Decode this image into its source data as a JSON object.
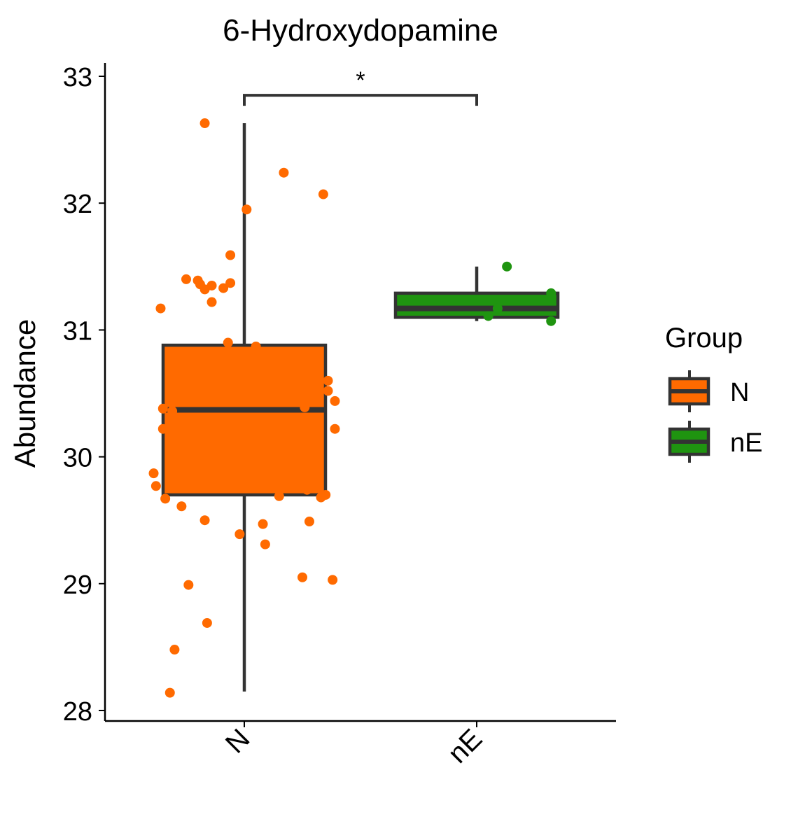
{
  "chart_data": {
    "type": "boxplot",
    "title": "6-Hydroxydopamine",
    "xlabel": "",
    "ylabel": "Abundance",
    "categories": [
      "N",
      "nE"
    ],
    "ylim": [
      27.94,
      33.1
    ],
    "yticks": [
      28,
      29,
      30,
      31,
      32,
      33
    ],
    "grid": false,
    "legend": {
      "title": "Group",
      "position": "right",
      "entries": [
        {
          "label": "N",
          "color": "#ff6a00"
        },
        {
          "label": "nE",
          "color": "#1f9410"
        }
      ]
    },
    "boxes": [
      {
        "group": "N",
        "color": "#ff6a00",
        "min": 28.15,
        "q1": 29.7,
        "median": 30.37,
        "q3": 30.88,
        "max": 32.63
      },
      {
        "group": "nE",
        "color": "#1f9410",
        "min": 31.07,
        "q1": 31.1,
        "median": 31.17,
        "q3": 31.29,
        "max": 31.5
      }
    ],
    "points": [
      {
        "group": "N",
        "jitter": -0.17,
        "y": 32.63
      },
      {
        "group": "N",
        "jitter": 0.17,
        "y": 32.24
      },
      {
        "group": "N",
        "jitter": 0.34,
        "y": 32.07
      },
      {
        "group": "N",
        "jitter": 0.01,
        "y": 31.95
      },
      {
        "group": "N",
        "jitter": -0.06,
        "y": 31.59
      },
      {
        "group": "N",
        "jitter": -0.25,
        "y": 31.4
      },
      {
        "group": "N",
        "jitter": -0.2,
        "y": 31.39
      },
      {
        "group": "N",
        "jitter": -0.19,
        "y": 31.36
      },
      {
        "group": "N",
        "jitter": -0.14,
        "y": 31.35
      },
      {
        "group": "N",
        "jitter": -0.06,
        "y": 31.37
      },
      {
        "group": "N",
        "jitter": -0.09,
        "y": 31.33
      },
      {
        "group": "N",
        "jitter": -0.17,
        "y": 31.32
      },
      {
        "group": "N",
        "jitter": -0.14,
        "y": 31.22
      },
      {
        "group": "N",
        "jitter": -0.36,
        "y": 31.17
      },
      {
        "group": "N",
        "jitter": -0.07,
        "y": 30.9
      },
      {
        "group": "N",
        "jitter": 0.05,
        "y": 30.87
      },
      {
        "group": "N",
        "jitter": 0.36,
        "y": 30.6
      },
      {
        "group": "N",
        "jitter": 0.36,
        "y": 30.52
      },
      {
        "group": "N",
        "jitter": 0.39,
        "y": 30.44
      },
      {
        "group": "N",
        "jitter": 0.26,
        "y": 30.39
      },
      {
        "group": "N",
        "jitter": -0.35,
        "y": 30.38
      },
      {
        "group": "N",
        "jitter": -0.31,
        "y": 30.36
      },
      {
        "group": "N",
        "jitter": -0.35,
        "y": 30.22
      },
      {
        "group": "N",
        "jitter": 0.39,
        "y": 30.22
      },
      {
        "group": "N",
        "jitter": -0.39,
        "y": 29.87
      },
      {
        "group": "N",
        "jitter": -0.38,
        "y": 29.77
      },
      {
        "group": "N",
        "jitter": 0.27,
        "y": 29.74
      },
      {
        "group": "N",
        "jitter": 0.35,
        "y": 29.7
      },
      {
        "group": "N",
        "jitter": 0.33,
        "y": 29.68
      },
      {
        "group": "N",
        "jitter": 0.15,
        "y": 29.69
      },
      {
        "group": "N",
        "jitter": -0.34,
        "y": 29.67
      },
      {
        "group": "N",
        "jitter": -0.27,
        "y": 29.61
      },
      {
        "group": "N",
        "jitter": -0.17,
        "y": 29.5
      },
      {
        "group": "N",
        "jitter": 0.28,
        "y": 29.49
      },
      {
        "group": "N",
        "jitter": 0.08,
        "y": 29.47
      },
      {
        "group": "N",
        "jitter": -0.02,
        "y": 29.39
      },
      {
        "group": "N",
        "jitter": 0.09,
        "y": 29.31
      },
      {
        "group": "N",
        "jitter": 0.25,
        "y": 29.05
      },
      {
        "group": "N",
        "jitter": 0.38,
        "y": 29.03
      },
      {
        "group": "N",
        "jitter": -0.24,
        "y": 28.99
      },
      {
        "group": "N",
        "jitter": -0.16,
        "y": 28.69
      },
      {
        "group": "N",
        "jitter": -0.3,
        "y": 28.48
      },
      {
        "group": "N",
        "jitter": -0.32,
        "y": 28.14
      },
      {
        "group": "nE",
        "jitter": 0.13,
        "y": 31.5
      },
      {
        "group": "nE",
        "jitter": 0.32,
        "y": 31.29
      },
      {
        "group": "nE",
        "jitter": 0.09,
        "y": 31.17
      },
      {
        "group": "nE",
        "jitter": 0.05,
        "y": 31.11
      },
      {
        "group": "nE",
        "jitter": 0.32,
        "y": 31.07
      }
    ],
    "annotations": [
      {
        "type": "significance-bracket",
        "from": "N",
        "to": "nE",
        "y": 32.85,
        "label": "*"
      }
    ]
  }
}
